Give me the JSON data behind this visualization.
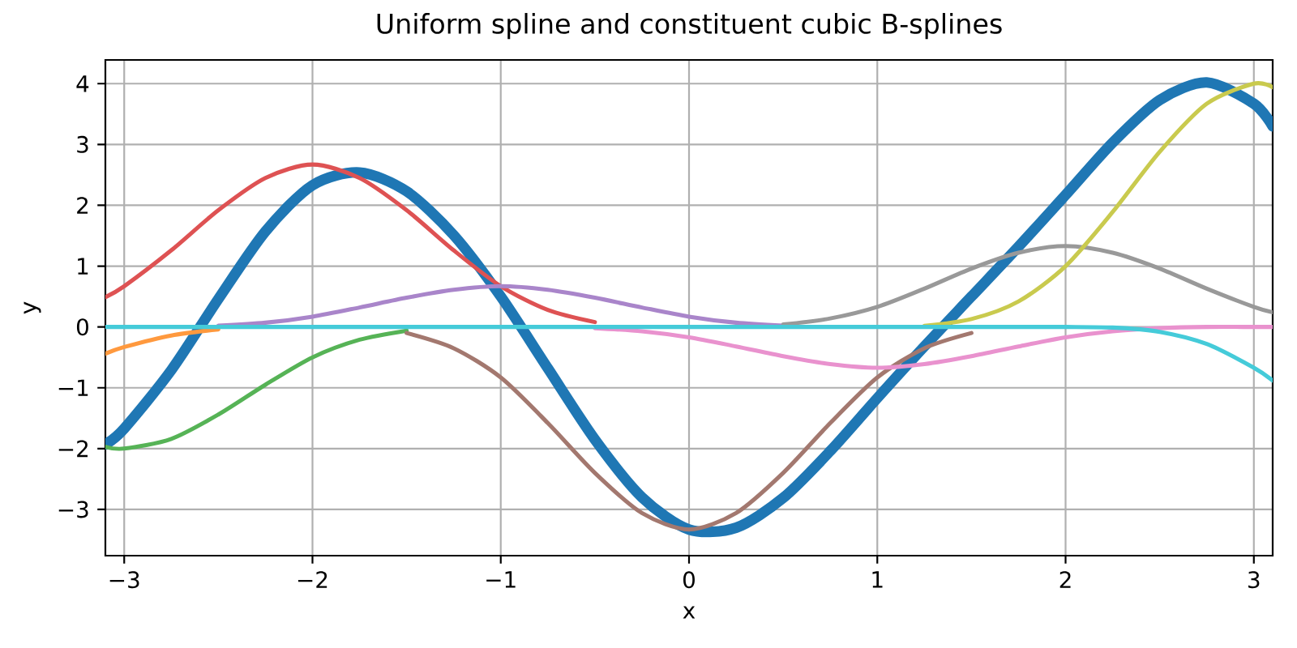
{
  "chart_data": {
    "type": "line",
    "title": "Uniform spline and constituent cubic B-splines",
    "xlabel": "x",
    "ylabel": "y",
    "x": [
      -3.1,
      -3,
      -2.75,
      -2.5,
      -2.25,
      -2,
      -1.75,
      -1.5,
      -1.25,
      -1,
      -0.75,
      -0.5,
      -0.25,
      0,
      0.25,
      0.5,
      0.75,
      1,
      1.25,
      1.5,
      1.75,
      2,
      2.25,
      2.5,
      2.75,
      3,
      3.1
    ],
    "series": [
      {
        "color": "#1f77b4",
        "values": [
          -1.93,
          -1.67,
          -0.71,
          0.46,
          1.57,
          2.33,
          2.54,
          2.23,
          1.51,
          0.5,
          -0.68,
          -1.85,
          -2.8,
          -3.33,
          -3.3,
          -2.81,
          -2.04,
          -1.17,
          -0.32,
          0.5,
          1.32,
          2.17,
          3.03,
          3.73,
          4.02,
          3.67,
          3.3
        ]
      },
      {
        "color": "#ff993e",
        "values": [
          -0.44,
          -0.33,
          -0.14,
          -0.04,
          null,
          null,
          null,
          null,
          null,
          null,
          null,
          null,
          null,
          null,
          null,
          null,
          null,
          null,
          null,
          null,
          null,
          null,
          null,
          null,
          null,
          null,
          null
        ]
      },
      {
        "color": "#56b356",
        "values": [
          -1.97,
          -2,
          -1.84,
          -1.44,
          -0.95,
          -0.5,
          -0.21,
          -0.06,
          null,
          null,
          null,
          null,
          null,
          null,
          null,
          null,
          null,
          null,
          null,
          null,
          null,
          null,
          null,
          null,
          null,
          null,
          null
        ]
      },
      {
        "color": "#de5253",
        "values": [
          0.49,
          0.67,
          1.26,
          1.92,
          2.45,
          2.67,
          2.45,
          1.92,
          1.26,
          0.67,
          0.28,
          0.08,
          null,
          null,
          null,
          null,
          null,
          null,
          null,
          null,
          null,
          null,
          null,
          null,
          null,
          null,
          null
        ]
      },
      {
        "color": "#a985ca",
        "values": [
          null,
          null,
          null,
          0.02,
          0.07,
          0.17,
          0.32,
          0.48,
          0.61,
          0.67,
          0.61,
          0.48,
          0.32,
          0.17,
          0.07,
          0.02,
          null,
          null,
          null,
          null,
          null,
          null,
          null,
          null,
          null,
          null,
          null
        ]
      },
      {
        "color": "#a3786f",
        "values": [
          null,
          null,
          null,
          null,
          null,
          null,
          null,
          -0.1,
          -0.35,
          -0.83,
          -1.58,
          -2.4,
          -3.06,
          -3.33,
          -3.06,
          -2.4,
          -1.58,
          -0.83,
          -0.35,
          -0.1,
          null,
          null,
          null,
          null,
          null,
          null,
          null
        ]
      },
      {
        "color": "#e992ce",
        "values": [
          null,
          null,
          null,
          null,
          null,
          null,
          null,
          null,
          null,
          null,
          null,
          -0.02,
          -0.07,
          -0.17,
          -0.32,
          -0.48,
          -0.61,
          -0.67,
          -0.61,
          -0.48,
          -0.32,
          -0.17,
          -0.07,
          -0.02,
          0,
          0,
          0
        ]
      },
      {
        "color": "#999999",
        "values": [
          null,
          null,
          null,
          null,
          null,
          null,
          null,
          null,
          null,
          null,
          null,
          null,
          null,
          null,
          null,
          0.04,
          0.14,
          0.33,
          0.63,
          0.96,
          1.22,
          1.33,
          1.22,
          0.96,
          0.63,
          0.33,
          0.24
        ]
      },
      {
        "color": "#c9ca4e",
        "values": [
          null,
          null,
          null,
          null,
          null,
          null,
          null,
          null,
          null,
          null,
          null,
          null,
          null,
          null,
          null,
          null,
          null,
          null,
          0.02,
          0.13,
          0.42,
          1,
          1.89,
          2.88,
          3.67,
          4,
          3.94
        ]
      },
      {
        "color": "#45cbd9",
        "values": [
          0,
          0,
          0,
          0,
          0,
          0,
          0,
          0,
          0,
          0,
          0,
          0,
          0,
          0,
          0,
          0,
          0,
          0,
          0,
          0,
          0,
          0,
          -0.01,
          -0.08,
          -0.28,
          -0.67,
          -0.88
        ]
      }
    ],
    "xlim": [
      -3.1,
      3.1
    ],
    "ylim": [
      -3.76,
      4.39
    ],
    "xticks": [
      {
        "value": -3,
        "label": "−3"
      },
      {
        "value": -2,
        "label": "−2"
      },
      {
        "value": -1,
        "label": "−1"
      },
      0,
      1,
      2,
      3
    ],
    "yticks": [
      {
        "value": -3,
        "label": "−3"
      },
      {
        "value": -2,
        "label": "−2"
      },
      {
        "value": -1,
        "label": "−1"
      },
      0,
      1,
      2,
      3,
      4
    ],
    "grid": true,
    "marker": "none"
  }
}
